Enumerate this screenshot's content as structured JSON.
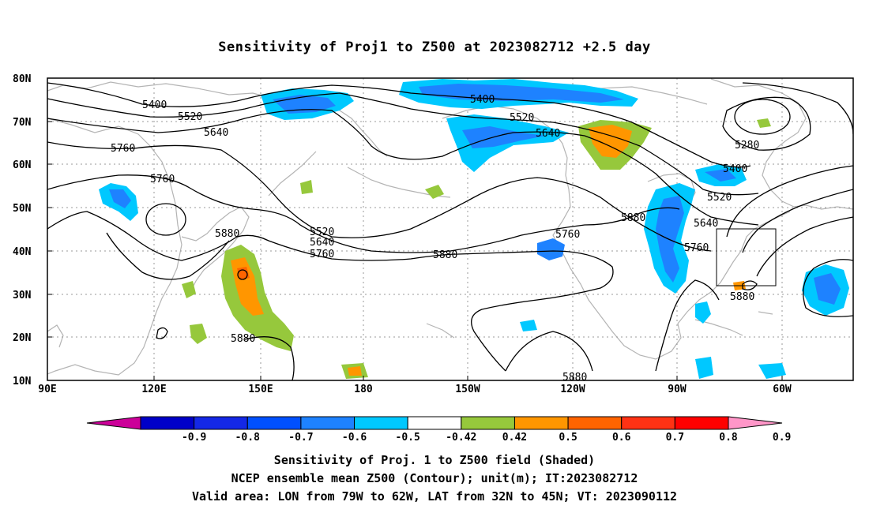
{
  "title": "Sensitivity of Proj1 to Z500 at 2023082712 +2.5 day",
  "lat_labels": [
    "80N",
    "70N",
    "60N",
    "50N",
    "40N",
    "30N",
    "20N",
    "10N"
  ],
  "lon_labels": [
    "90E",
    "120E",
    "150E",
    "180",
    "150W",
    "120W",
    "90W",
    "60W"
  ],
  "colorbar": {
    "labels": [
      "-0.9",
      "-0.8",
      "-0.7",
      "-0.6",
      "-0.5",
      "-0.42",
      "0.42",
      "0.5",
      "0.6",
      "0.7",
      "0.8",
      "0.9"
    ],
    "colors": [
      "#cc0099",
      "#0000c8",
      "#1428e6",
      "#0050ff",
      "#1e82ff",
      "#00c8ff",
      "#ffffff",
      "#96c83c",
      "#ff9600",
      "#ff6400",
      "#ff3214",
      "#ff0000",
      "#ff96c8"
    ]
  },
  "contour_labels": [
    {
      "text": "5400"
    },
    {
      "text": "5520"
    },
    {
      "text": "5640"
    },
    {
      "text": "5760"
    },
    {
      "text": "5760"
    },
    {
      "text": "5880"
    },
    {
      "text": "5400"
    },
    {
      "text": "5520"
    },
    {
      "text": "5640"
    },
    {
      "text": "5280"
    },
    {
      "text": "5400"
    },
    {
      "text": "5520"
    },
    {
      "text": "5880"
    },
    {
      "text": "5640"
    },
    {
      "text": "5760"
    },
    {
      "text": "5520"
    },
    {
      "text": "5640"
    },
    {
      "text": "5760"
    },
    {
      "text": "5760"
    },
    {
      "text": "5880"
    },
    {
      "text": "5880"
    },
    {
      "text": "5880"
    },
    {
      "text": "5880"
    }
  ],
  "captions": {
    "line1": "Sensitivity of Proj. 1 to Z500 field (Shaded)",
    "line2": "NCEP ensemble mean Z500 (Contour); unit(m); IT:2023082712",
    "line3": "Valid area: LON from 79W to 62W, LAT from 32N to 45N; VT: 2023090112"
  }
}
